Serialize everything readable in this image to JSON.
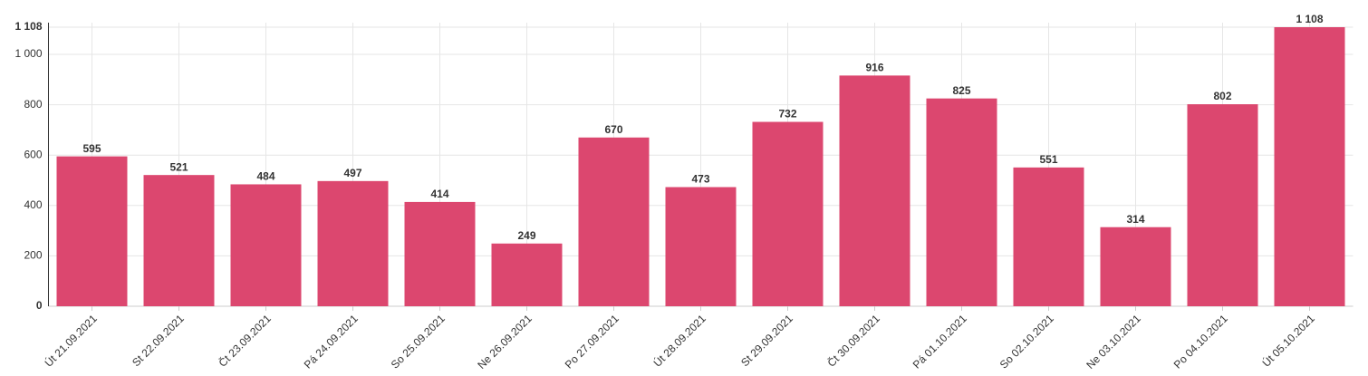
{
  "chart_data": {
    "type": "bar",
    "categories": [
      "Út 21.09.2021",
      "St 22.09.2021",
      "Čt 23.09.2021",
      "Pá 24.09.2021",
      "So 25.09.2021",
      "Ne 26.09.2021",
      "Po 27.09.2021",
      "Út 28.09.2021",
      "St 29.09.2021",
      "Čt 30.09.2021",
      "Pá 01.10.2021",
      "So 02.10.2021",
      "Ne 03.10.2021",
      "Po 04.10.2021",
      "Út 05.10.2021"
    ],
    "values": [
      595,
      521,
      484,
      497,
      414,
      249,
      670,
      473,
      732,
      916,
      825,
      551,
      314,
      802,
      1108
    ],
    "value_labels": [
      "595",
      "521",
      "484",
      "497",
      "414",
      "249",
      "670",
      "473",
      "732",
      "916",
      "825",
      "551",
      "314",
      "802",
      "1 108"
    ],
    "color": "#dc476f",
    "ylim": [
      0,
      1108
    ],
    "yticks": [
      0,
      200,
      400,
      600,
      800,
      {
        "value": 1000,
        "label": "1 000"
      },
      {
        "value": 1108,
        "label": "1 108"
      }
    ],
    "grid": true
  }
}
